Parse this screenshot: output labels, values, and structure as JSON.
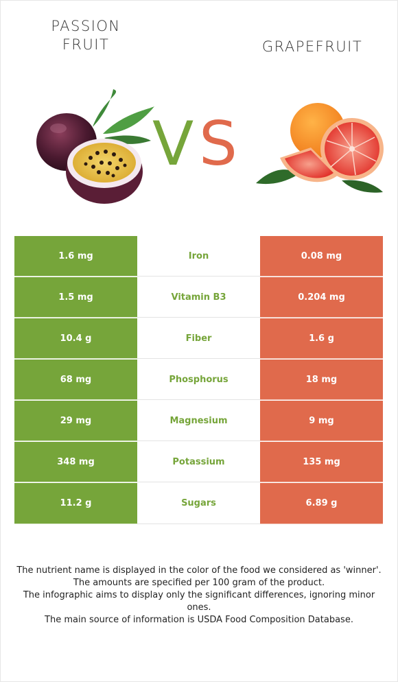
{
  "header": {
    "left_food": "PASSION FRUIT",
    "right_food": "GRAPEFRUIT",
    "vs_v": "V",
    "vs_s": "S"
  },
  "colors": {
    "left_color": "#76a53a",
    "right_color": "#e06a4c"
  },
  "table": {
    "rows": [
      {
        "left": "1.6 mg",
        "nutrient": "Iron",
        "right": "0.08 mg"
      },
      {
        "left": "1.5 mg",
        "nutrient": "Vitamin B3",
        "right": "0.204 mg"
      },
      {
        "left": "10.4 g",
        "nutrient": "Fiber",
        "right": "1.6 g"
      },
      {
        "left": "68 mg",
        "nutrient": "Phosphorus",
        "right": "18 mg"
      },
      {
        "left": "29 mg",
        "nutrient": "Magnesium",
        "right": "9 mg"
      },
      {
        "left": "348 mg",
        "nutrient": "Potassium",
        "right": "135 mg"
      },
      {
        "left": "11.2 g",
        "nutrient": "Sugars",
        "right": "6.89 g"
      }
    ]
  },
  "footnote": {
    "line1": "The nutrient name is displayed in the color of the food we considered as 'winner'.",
    "line2": "The amounts are specified per 100 gram of the product.",
    "line3": "The infographic aims to display only the significant differences, ignoring minor ones.",
    "line4": "The main source of information is USDA Food Composition Database."
  }
}
